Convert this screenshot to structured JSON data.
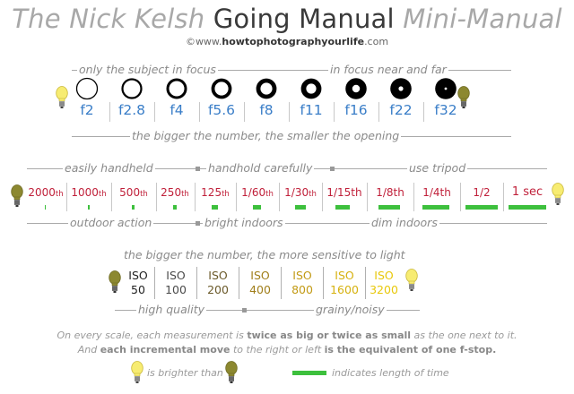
{
  "title": {
    "part1": "The Nick Kelsh ",
    "part2": "Going Manual ",
    "part3": "Mini-Manual"
  },
  "website": {
    "prefix": "©www.",
    "bold": "howtophotographyourlife",
    "suffix": ".com"
  },
  "aperture": {
    "caption_left": "only the subject in focus",
    "caption_right": "in focus near and far",
    "stops": [
      "f2",
      "f2.8",
      "f4",
      "f5.6",
      "f8",
      "f11",
      "f16",
      "f22",
      "f32"
    ],
    "caption_bottom": "the bigger the number, the smaller the opening"
  },
  "shutter": {
    "caption_1": "easily handheld",
    "caption_2": "handhold carefully",
    "caption_3": "use tripod",
    "speeds": [
      {
        "num": "2000",
        "suf": "th"
      },
      {
        "num": "1000",
        "suf": "th"
      },
      {
        "num": "500",
        "suf": "th"
      },
      {
        "num": "250",
        "suf": "th"
      },
      {
        "num": "125",
        "suf": "th"
      },
      {
        "num": "1/60",
        "suf": "th"
      },
      {
        "num": "1/30",
        "suf": "th"
      },
      {
        "num": "1/15th",
        "suf": ""
      },
      {
        "num": "1/8th",
        "suf": ""
      },
      {
        "num": "1/4th",
        "suf": ""
      },
      {
        "num": "1/2",
        "suf": ""
      },
      {
        "num": "1 sec",
        "suf": ""
      }
    ],
    "bottom_1": "outdoor action",
    "bottom_2": "bright indoors",
    "bottom_3": "dim indoors"
  },
  "iso": {
    "caption_top": "the bigger the number, the more sensitive to light",
    "values": [
      {
        "top": "ISO",
        "bottom": "50",
        "color": "#222222"
      },
      {
        "top": "ISO",
        "bottom": "100",
        "color": "#4a4a4a"
      },
      {
        "top": "ISO",
        "bottom": "200",
        "color": "#6b5a2a"
      },
      {
        "top": "ISO",
        "bottom": "400",
        "color": "#a07e1a"
      },
      {
        "top": "ISO",
        "bottom": "800",
        "color": "#c29a14"
      },
      {
        "top": "ISO",
        "bottom": "1600",
        "color": "#d6b10e"
      },
      {
        "top": "ISO",
        "bottom": "3200",
        "color": "#e8c80a"
      }
    ],
    "bottom_left": "high quality",
    "bottom_right": "grainy/noisy"
  },
  "notes": {
    "line1_a": "On every scale, each measurement is ",
    "line1_b": "twice as big or twice as small",
    "line1_c": " as the one next to it.",
    "line2_a": "And ",
    "line2_b": "each incremental move",
    "line2_c": " to the right or left ",
    "line2_d": "is the equivalent of one f-stop."
  },
  "legend": {
    "brighter": "is brighter than",
    "time": "indicates length of time"
  },
  "colors": {
    "aperture_text": "#3a7ec8",
    "shutter_text": "#c0203a",
    "time_bar": "#3dc03d",
    "bright_bulb": "#f5e86a",
    "dim_bulb": "#8e8a2c"
  }
}
